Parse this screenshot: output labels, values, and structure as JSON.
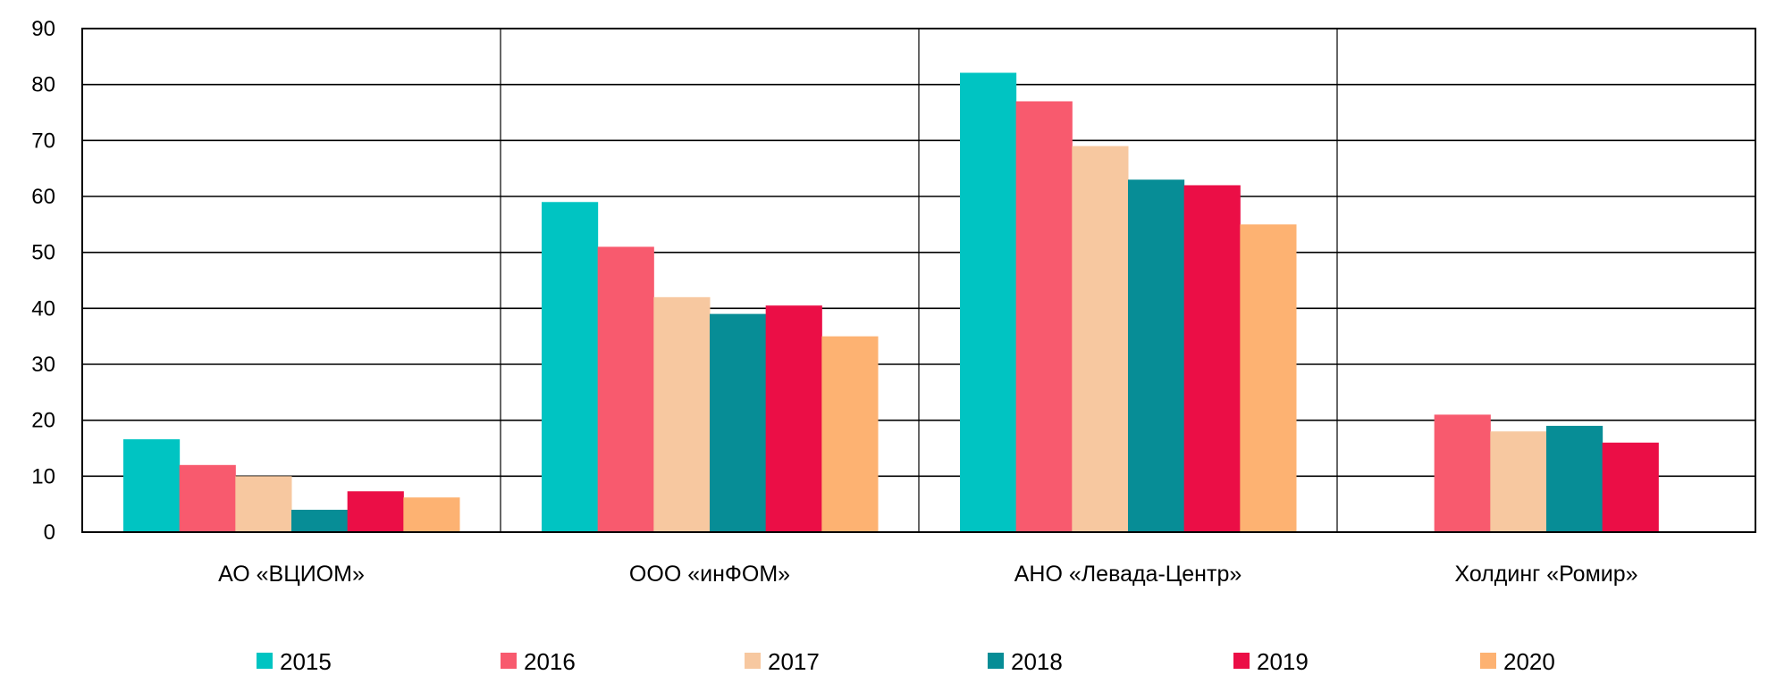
{
  "chart_data": {
    "type": "bar",
    "title": "",
    "xlabel": "",
    "ylabel": "",
    "ylim": [
      0,
      90
    ],
    "yticks": [
      0,
      10,
      20,
      30,
      40,
      50,
      60,
      70,
      80,
      90
    ],
    "grid": true,
    "legend_position": "bottom",
    "categories": [
      "АО «ВЦИОМ»",
      "ООО «инФОМ»",
      "АНО «Левада-Центр»",
      "Холдинг «Ромир»"
    ],
    "series": [
      {
        "name": "2015",
        "color": "#00C4C2",
        "values": [
          16.6,
          59,
          82.1,
          null
        ]
      },
      {
        "name": "2016",
        "color": "#F85A6E",
        "values": [
          12,
          51,
          77,
          21
        ]
      },
      {
        "name": "2017",
        "color": "#F7C8A0",
        "values": [
          10,
          42,
          69,
          18
        ]
      },
      {
        "name": "2018",
        "color": "#078D96",
        "values": [
          4,
          39,
          63,
          19
        ]
      },
      {
        "name": "2019",
        "color": "#EB0E46",
        "values": [
          7.3,
          40.5,
          62,
          16
        ]
      },
      {
        "name": "2020",
        "color": "#FDB272",
        "values": [
          6.2,
          35,
          55,
          0
        ]
      }
    ]
  }
}
